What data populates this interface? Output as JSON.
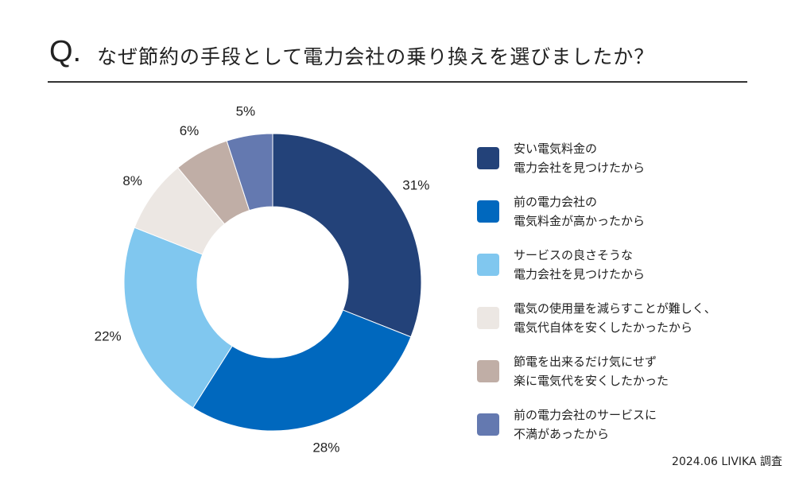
{
  "header": {
    "q_mark": "Q.",
    "title": "なぜ節約の手段として電力会社の乗り換えを選びましたか？"
  },
  "source": "2024.06 LIVIKA 調査",
  "chart_data": {
    "type": "pie",
    "donut": true,
    "title": "なぜ節約の手段として電力会社の乗り換えを選びましたか？",
    "legend_position": "right",
    "series": [
      {
        "name": "安い電気料金の\n電力会社を見つけたから",
        "value": 31,
        "label": "31%",
        "color": "#234279"
      },
      {
        "name": "前の電力会社の\n電気料金が高かったから",
        "value": 28,
        "label": "28%",
        "color": "#0068be"
      },
      {
        "name": "サービスの良さそうな\n電力会社を見つけたから",
        "value": 22,
        "label": "22%",
        "color": "#80c7ef"
      },
      {
        "name": "電気の使用量を減らすことが難しく、\n電気代自体を安くしたかったから",
        "value": 8,
        "label": "8%",
        "color": "#ece7e3"
      },
      {
        "name": "節電を出来るだけ気にせず\n楽に電気代を安くしたかった",
        "value": 6,
        "label": "6%",
        "color": "#c0aea6"
      },
      {
        "name": "前の電力会社のサービスに\n不満があったから",
        "value": 5,
        "label": "5%",
        "color": "#6479b0"
      }
    ]
  }
}
